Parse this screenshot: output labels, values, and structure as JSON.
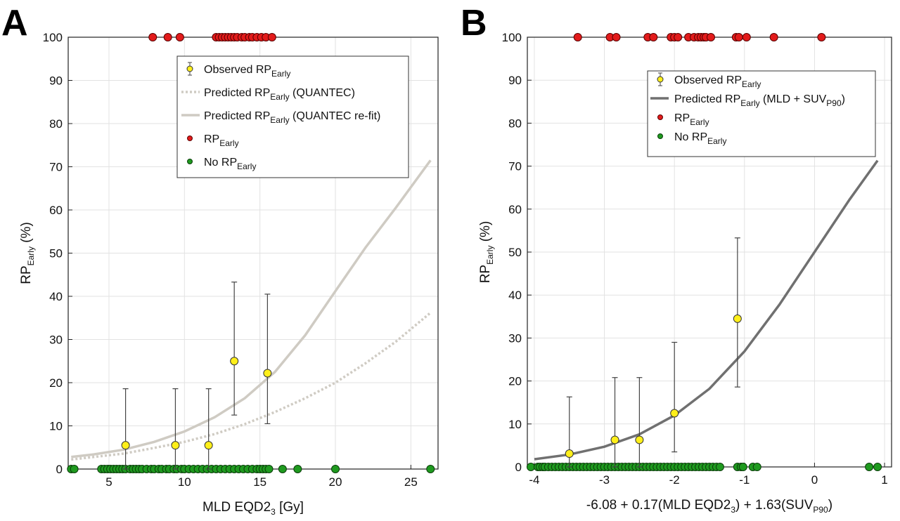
{
  "panels": {
    "a": {
      "letter": "A"
    },
    "b": {
      "letter": "B"
    }
  },
  "chart_data": [
    {
      "type": "scatter",
      "panel": "A",
      "xlabel_main": "MLD EQD2",
      "xlabel_sub": "3",
      "xlabel_tail": " [Gy]",
      "ylabel_main": "RP",
      "ylabel_sub": "Early",
      "ylabel_tail": " (%)",
      "xlim": [
        2.3,
        26.8
      ],
      "ylim": [
        0,
        100
      ],
      "xticks": [
        5,
        10,
        15,
        20,
        25
      ],
      "yticks": [
        0,
        10,
        20,
        30,
        40,
        50,
        60,
        70,
        80,
        90,
        100
      ],
      "grid": true,
      "legend_position": "top-right",
      "legend": [
        {
          "kind": "errorpoint",
          "main": "Observed RP",
          "sub": "Early",
          "tail": ""
        },
        {
          "kind": "dotted",
          "main": "Predicted RP",
          "sub": "Early",
          "tail": " (QUANTEC)"
        },
        {
          "kind": "solid-light",
          "main": "Predicted RP",
          "sub": "Early",
          "tail": " (QUANTEC re-fit)"
        },
        {
          "kind": "red",
          "main": "RP",
          "sub": "Early",
          "tail": ""
        },
        {
          "kind": "green",
          "main": "No RP",
          "sub": "Early",
          "tail": ""
        }
      ],
      "observed": [
        {
          "x": 6.1,
          "y": 5.5,
          "lo": 0,
          "hi": 18.6
        },
        {
          "x": 9.4,
          "y": 5.5,
          "lo": 0,
          "hi": 18.6
        },
        {
          "x": 11.6,
          "y": 5.5,
          "lo": 0,
          "hi": 18.6
        },
        {
          "x": 13.3,
          "y": 25.0,
          "lo": 12.5,
          "hi": 43.3
        },
        {
          "x": 15.5,
          "y": 22.2,
          "lo": 10.5,
          "hi": 40.5
        }
      ],
      "predicted_quantec": {
        "x": [
          2.5,
          4,
          6,
          8,
          10,
          12,
          14,
          16,
          18,
          20,
          22,
          24,
          26.3
        ],
        "y": [
          2.2,
          2.8,
          3.6,
          4.9,
          6.3,
          8.1,
          10.4,
          13.2,
          16.4,
          20.0,
          24.5,
          29.5,
          36.2
        ]
      },
      "predicted_refit": {
        "x": [
          2.5,
          4,
          6,
          8,
          10,
          12,
          14,
          16,
          18,
          20,
          22,
          24,
          26.3
        ],
        "y": [
          2.8,
          3.4,
          4.5,
          6.3,
          8.7,
          12.0,
          16.4,
          22.5,
          31.0,
          41.2,
          51.3,
          60.5,
          71.5
        ]
      },
      "rp_early_x": [
        7.9,
        8.9,
        9.7,
        12.1,
        12.3,
        12.5,
        12.7,
        12.9,
        13.1,
        13.3,
        13.5,
        13.8,
        14.0,
        14.3,
        14.5,
        14.8,
        15.1,
        15.4,
        15.8
      ],
      "no_rp_early_x": [
        2.5,
        2.7,
        4.5,
        4.7,
        4.9,
        5.1,
        5.3,
        5.5,
        5.7,
        5.9,
        6.1,
        6.4,
        6.6,
        6.8,
        7.0,
        7.2,
        7.5,
        7.8,
        8.0,
        8.3,
        8.5,
        8.8,
        9.0,
        9.3,
        9.5,
        9.8,
        10.0,
        10.3,
        10.6,
        10.9,
        11.2,
        11.5,
        11.8,
        12.1,
        12.4,
        12.7,
        13.0,
        13.3,
        13.6,
        13.9,
        14.2,
        14.5,
        14.8,
        15.0,
        15.2,
        15.4,
        15.6,
        16.5,
        17.5,
        20.0,
        26.3
      ]
    },
    {
      "type": "scatter",
      "panel": "B",
      "xlabel_main": "-6.08 + 0.17(MLD EQD2",
      "xlabel_sub": "3",
      "xlabel_mid": ") + 1.63(SUV",
      "xlabel_sub2": "P90",
      "xlabel_tail": ")",
      "ylabel_main": "RP",
      "ylabel_sub": "Early",
      "ylabel_tail": " (%)",
      "xlim": [
        -4.1,
        1.1
      ],
      "ylim": [
        0,
        100
      ],
      "xticks": [
        -4,
        -3,
        -2,
        -1,
        0,
        1
      ],
      "yticks": [
        0,
        10,
        20,
        30,
        40,
        50,
        60,
        70,
        80,
        90,
        100
      ],
      "grid": true,
      "legend_position": "top-right",
      "legend": [
        {
          "kind": "errorpoint",
          "main": "Observed RP",
          "sub": "Early",
          "tail": ""
        },
        {
          "kind": "solid-dark",
          "main": "Predicted RP",
          "sub": "Early",
          "tail": " (MLD + SUV",
          "sub2": "P90",
          "tail2": ")"
        },
        {
          "kind": "red",
          "main": "RP",
          "sub": "Early",
          "tail": ""
        },
        {
          "kind": "green",
          "main": "No RP",
          "sub": "Early",
          "tail": ""
        }
      ],
      "observed": [
        {
          "x": -3.5,
          "y": 3.1,
          "lo": 0,
          "hi": 16.3
        },
        {
          "x": -2.85,
          "y": 6.3,
          "lo": 0,
          "hi": 20.8
        },
        {
          "x": -2.5,
          "y": 6.3,
          "lo": 0,
          "hi": 20.8
        },
        {
          "x": -2.0,
          "y": 12.5,
          "lo": 3.5,
          "hi": 29.0
        },
        {
          "x": -1.1,
          "y": 34.5,
          "lo": 18.6,
          "hi": 53.3
        }
      ],
      "predicted": {
        "x": [
          -4.0,
          -3.5,
          -3.0,
          -2.5,
          -2.0,
          -1.5,
          -1.0,
          -0.5,
          0.0,
          0.5,
          0.9
        ],
        "y": [
          1.8,
          2.9,
          4.7,
          7.6,
          12.0,
          18.2,
          26.9,
          37.8,
          50.0,
          62.2,
          71.3
        ]
      },
      "rp_early_x": [
        -3.38,
        -2.92,
        -2.83,
        -2.38,
        -2.3,
        -2.05,
        -2.0,
        -1.95,
        -1.8,
        -1.72,
        -1.66,
        -1.62,
        -1.58,
        -1.55,
        -1.48,
        -1.12,
        -1.08,
        -0.97,
        -0.58,
        0.1
      ],
      "no_rp_early_x": [
        -4.05,
        -3.95,
        -3.92,
        -3.88,
        -3.85,
        -3.8,
        -3.75,
        -3.7,
        -3.65,
        -3.6,
        -3.55,
        -3.5,
        -3.45,
        -3.4,
        -3.35,
        -3.3,
        -3.25,
        -3.2,
        -3.15,
        -3.1,
        -3.05,
        -3.0,
        -2.95,
        -2.9,
        -2.85,
        -2.8,
        -2.75,
        -2.7,
        -2.65,
        -2.6,
        -2.55,
        -2.5,
        -2.45,
        -2.4,
        -2.35,
        -2.3,
        -2.25,
        -2.2,
        -2.15,
        -2.1,
        -2.05,
        -2.0,
        -1.95,
        -1.9,
        -1.85,
        -1.8,
        -1.75,
        -1.7,
        -1.65,
        -1.6,
        -1.55,
        -1.5,
        -1.45,
        -1.4,
        -1.35,
        -1.1,
        -1.05,
        -1.02,
        -0.88,
        -0.82,
        0.78,
        0.9
      ]
    }
  ]
}
